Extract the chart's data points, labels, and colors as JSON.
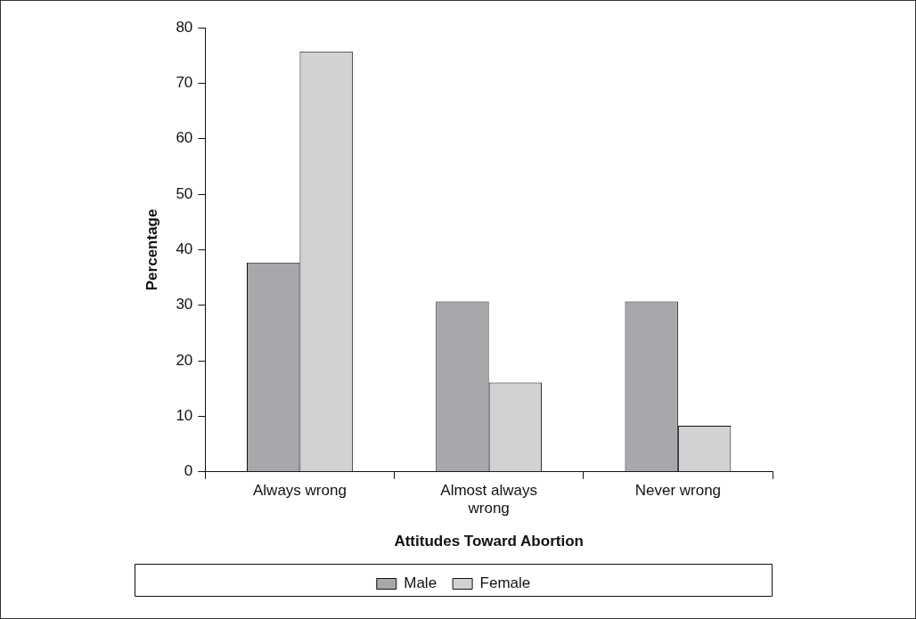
{
  "chart_data": {
    "type": "bar",
    "xlabel": "Attitudes Toward Abortion",
    "ylabel": "Percentage",
    "categories": [
      "Always wrong",
      "Almost always wrong",
      "Never wrong"
    ],
    "series": [
      {
        "name": "Male",
        "color": "#a7a8ac",
        "values": [
          37.7,
          30.7,
          30.7
        ]
      },
      {
        "name": "Female",
        "color": "#d1d2d4",
        "values": [
          75.7,
          16.1,
          8.3
        ]
      }
    ],
    "ylim": [
      0,
      80
    ],
    "yticks": [
      0,
      10,
      20,
      30,
      40,
      50,
      60,
      70,
      80
    ],
    "grid": false,
    "legend": "bottom"
  }
}
